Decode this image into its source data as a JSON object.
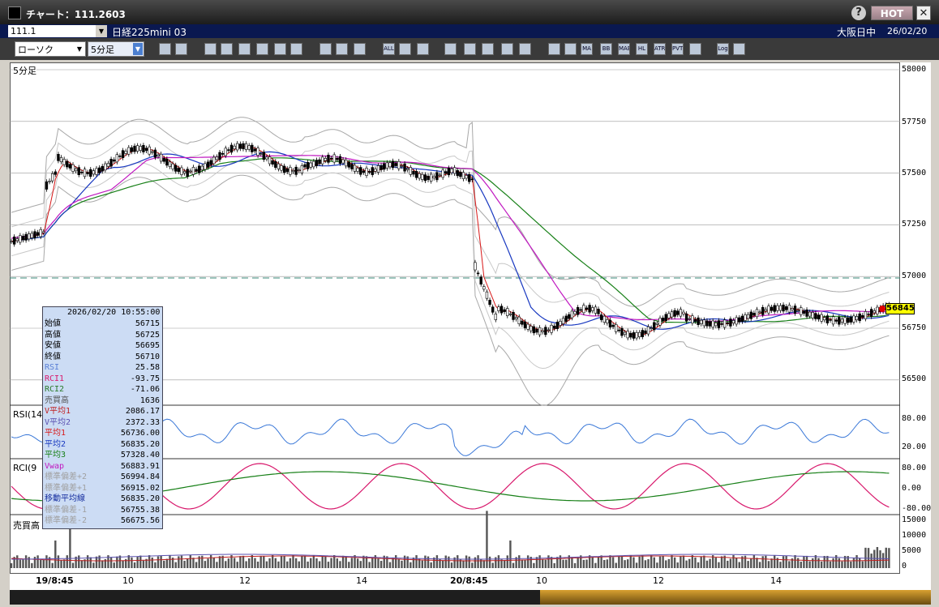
{
  "window": {
    "title": "チャート：111.2603",
    "help": "?",
    "hot": "HOT",
    "close": "✕"
  },
  "header": {
    "code": "111.1",
    "name": "日経225mini 03",
    "market": "大阪日中",
    "date": "26/02/20"
  },
  "toolbar": {
    "chart_type": "ローソク",
    "period": "5分足",
    "buttons": [
      "zoom",
      "crosshair",
      "draw-line",
      "draw-trend",
      "cursor",
      "eraser",
      "text",
      "doc",
      "trash",
      "candle-a",
      "candle-b",
      "all",
      "patterns",
      "color",
      "palette",
      "settings-a",
      "settings-b",
      "add",
      "arrows",
      "lock",
      "bar-a",
      "ma",
      "bb",
      "mae",
      "hl",
      "atr",
      "pvt",
      "reload",
      "log",
      "export"
    ],
    "button_labels": {
      "all": "ALL",
      "ma": "MA",
      "bb": "BB",
      "mae": "MAE",
      "hl": "HL",
      "atr": "ATR",
      "pvt": "PVT",
      "log": "Log"
    }
  },
  "panels": {
    "price_label": "5分足",
    "rsi_label": "RSI(14",
    "rci_label": "RCI(9",
    "volume_label": "売買高"
  },
  "price_axis": [
    "58000",
    "57750",
    "57500",
    "57250",
    "57000",
    "56750",
    "56500"
  ],
  "rsi_axis": [
    "80.00",
    "20.00"
  ],
  "rci_axis": [
    "80.00",
    "0.00",
    "-80.00"
  ],
  "vol_axis": [
    "15000",
    "10000",
    "5000",
    "0"
  ],
  "x_axis": [
    "19/8:45",
    "10",
    "12",
    "14",
    "20/8:45",
    "10",
    "12",
    "14"
  ],
  "last_price": "56845",
  "databox": {
    "datetime": "2026/02/20  10:55:00",
    "rows": [
      {
        "label": "始値",
        "value": "56715",
        "color": "#000000"
      },
      {
        "label": "高値",
        "value": "56725",
        "color": "#000000"
      },
      {
        "label": "安値",
        "value": "56695",
        "color": "#000000"
      },
      {
        "label": "終値",
        "value": "56710",
        "color": "#000000"
      },
      {
        "label": "RSI",
        "value": "25.58",
        "color": "#5a7fd6"
      },
      {
        "label": "RCI1",
        "value": "-93.75",
        "color": "#d8186c"
      },
      {
        "label": "RCI2",
        "value": "-71.06",
        "color": "#2a7a2a"
      },
      {
        "label": "売買高",
        "value": "1636",
        "color": "#555555"
      },
      {
        "label": "V平均1",
        "value": "2086.17",
        "color": "#c02020"
      },
      {
        "label": "V平均2",
        "value": "2372.33",
        "color": "#5a50b0"
      },
      {
        "label": "平均1",
        "value": "56736.00",
        "color": "#d81818"
      },
      {
        "label": "平均2",
        "value": "56835.20",
        "color": "#1838c0"
      },
      {
        "label": "平均3",
        "value": "57328.40",
        "color": "#188018"
      },
      {
        "label": "Vwap",
        "value": "56883.91",
        "color": "#c018c0"
      },
      {
        "label": "標準偏差+2",
        "value": "56994.84",
        "color": "#a0a0a0"
      },
      {
        "label": "標準偏差+1",
        "value": "56915.02",
        "color": "#a0a0a0"
      },
      {
        "label": "移動平均線",
        "value": "56835.20",
        "color": "#1830a0"
      },
      {
        "label": "標準偏差-1",
        "value": "56755.38",
        "color": "#a0a0a0"
      },
      {
        "label": "標準偏差-2",
        "value": "56675.56",
        "color": "#a0a0a0"
      }
    ]
  },
  "colors": {
    "ma1": "#d81818",
    "ma2": "#1838c0",
    "ma3": "#188018",
    "vwap": "#c018c0",
    "bands": "#a8a8a8",
    "rsi": "#3a78d8",
    "rci1": "#d8186c",
    "rci2": "#188018"
  }
}
